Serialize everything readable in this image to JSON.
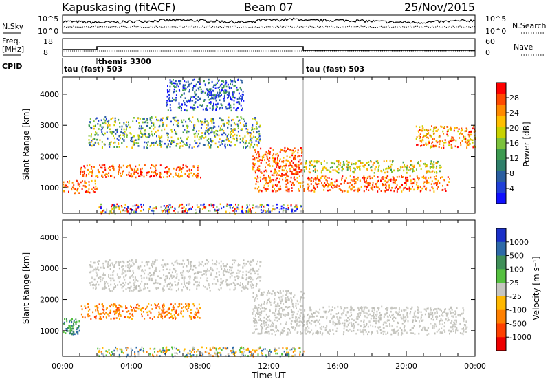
{
  "header": {
    "station": "Kapuskasing (fitACF)",
    "beam": "Beam 07",
    "date": "25/Nov/2015"
  },
  "strip_panels": {
    "nsky": {
      "label": "N.Sky",
      "y_ticks": [
        "10^5",
        "10^0"
      ]
    },
    "nsearch": {
      "label": "N.Search",
      "y_ticks": [
        "10^5",
        "10^0"
      ]
    },
    "freq": {
      "label_line1": "Freq.",
      "label_line2": "[MHz]",
      "y_ticks": [
        "18",
        "8"
      ]
    },
    "nave": {
      "label": "Nave",
      "y_ticks": [
        "60",
        "0"
      ]
    },
    "cpid": {
      "label": "CPID",
      "segments": [
        {
          "name": "tau (fast) 503",
          "start_hour": 0,
          "end_hour": 14
        },
        {
          "name": "themis 3300",
          "start_hour": 2,
          "end_hour": 14
        },
        {
          "name": "tau (fast) 503",
          "start_hour": 14,
          "end_hour": 24
        }
      ]
    }
  },
  "x_axis": {
    "label": "Time UT",
    "tick_labels": [
      "00:00",
      "04:00",
      "08:00",
      "12:00",
      "16:00",
      "20:00",
      "00:00"
    ]
  },
  "panels": [
    {
      "id": "power",
      "y_label": "Slant Range [km]",
      "y_ticks": [
        "4000",
        "3000",
        "2000",
        "1000"
      ],
      "colorbar": {
        "label": "Power [dB]",
        "ticks": [
          "28",
          "24",
          "20",
          "16",
          "12",
          "8",
          "4"
        ],
        "colors": [
          "#ff0000",
          "#ff4a00",
          "#ff8a00",
          "#ffbf00",
          "#c8d200",
          "#7cc23c",
          "#3d9a50",
          "#2f7f6a",
          "#2a5ea0",
          "#2040d8",
          "#1010ff"
        ]
      }
    },
    {
      "id": "velocity",
      "y_label": "Slant Range [km]",
      "y_ticks": [
        "4000",
        "3000",
        "2000",
        "1000"
      ],
      "colorbar": {
        "label": "Velocity [m s⁻¹]",
        "ticks": [
          "1000",
          "500",
          "100",
          "25",
          "-25",
          "-100",
          "-500",
          "-1000"
        ],
        "colors": [
          "#1a30c8",
          "#2e6aa8",
          "#3f8f58",
          "#55c040",
          "#c6c6c0",
          "#ffb800",
          "#ff8000",
          "#ff4000",
          "#ee0000"
        ]
      }
    }
  ],
  "chart_data": {
    "type": "heatmap",
    "x_range_hours": [
      0,
      24
    ],
    "y_range_km": [
      180,
      4550
    ],
    "power_bands": [
      {
        "name": "near-range",
        "t0": 0.0,
        "t1": 2.0,
        "r0": 850,
        "r1": 1250,
        "level": "high"
      },
      {
        "name": "low-band",
        "t0": 1.0,
        "t1": 8.0,
        "r0": 1350,
        "r1": 1750,
        "level": "high"
      },
      {
        "name": "mid-band",
        "t0": 1.5,
        "t1": 11.5,
        "r0": 2300,
        "r1": 3300,
        "level": "low-mid"
      },
      {
        "name": "upper-streak",
        "t0": 6.0,
        "t1": 10.5,
        "r0": 3500,
        "r1": 4500,
        "level": "low"
      },
      {
        "name": "descending-band",
        "t0": 11.0,
        "t1": 14.0,
        "r0": 900,
        "r1": 2300,
        "level": "high"
      },
      {
        "name": "ground-noise",
        "t0": 2.0,
        "t1": 14.0,
        "r0": 200,
        "r1": 500,
        "level": "mixed"
      },
      {
        "name": "post-switch-low",
        "t0": 14.0,
        "t1": 22.5,
        "r0": 900,
        "r1": 1400,
        "level": "high"
      },
      {
        "name": "post-switch-mid",
        "t0": 14.0,
        "t1": 22.0,
        "r0": 1500,
        "r1": 1900,
        "level": "mid"
      },
      {
        "name": "late-upper",
        "t0": 20.5,
        "t1": 24.0,
        "r0": 2300,
        "r1": 3000,
        "level": "mid-high"
      }
    ],
    "velocity_bands": [
      {
        "name": "low-band",
        "t0": 1.0,
        "t1": 8.0,
        "r0": 1400,
        "r1": 1900,
        "sign": "negative"
      },
      {
        "name": "mid-band",
        "t0": 1.5,
        "t1": 11.5,
        "r0": 2300,
        "r1": 3300,
        "sign": "ground"
      },
      {
        "name": "descending-band",
        "t0": 11.0,
        "t1": 14.0,
        "r0": 900,
        "r1": 2300,
        "sign": "ground"
      },
      {
        "name": "post-switch",
        "t0": 14.0,
        "t1": 23.5,
        "r0": 900,
        "r1": 1800,
        "sign": "ground"
      },
      {
        "name": "near-range-early",
        "t0": 0.0,
        "t1": 1.0,
        "r0": 900,
        "r1": 1400,
        "sign": "positive"
      },
      {
        "name": "ground-noise",
        "t0": 2.0,
        "t1": 14.0,
        "r0": 200,
        "r1": 500,
        "sign": "mixed"
      }
    ]
  }
}
